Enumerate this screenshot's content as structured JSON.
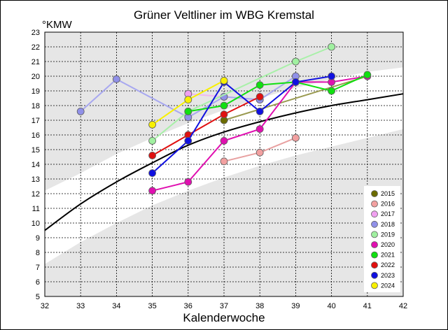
{
  "chart_data": {
    "type": "line",
    "title": "Grüner Veltliner im WBG Kremstal",
    "ylabel": "°KMW",
    "xlabel": "Kalenderwoche",
    "xlim": [
      32,
      42
    ],
    "ylim": [
      5,
      23
    ],
    "x_ticks": [
      32,
      33,
      34,
      35,
      36,
      37,
      38,
      39,
      40,
      41,
      42
    ],
    "y_ticks": [
      5,
      6,
      7,
      8,
      9,
      10,
      11,
      12,
      13,
      14,
      15,
      16,
      17,
      18,
      19,
      20,
      21,
      22,
      23
    ],
    "grid": true,
    "legend_position": "bottom-right",
    "background_bands": {
      "color": "#e6e6e6",
      "upper_band": {
        "x": [
          32,
          33,
          34,
          35,
          36,
          37,
          38,
          39,
          40,
          41,
          42
        ],
        "lower": [
          12.2,
          13.4,
          14.7,
          15.8,
          16.8,
          17.7,
          18.5,
          19.2,
          19.8,
          20.3,
          20.6
        ],
        "upper": [
          23,
          23,
          23,
          23,
          23,
          23,
          23,
          23,
          23,
          23,
          23
        ]
      },
      "lower_band": {
        "x": [
          32,
          33,
          34,
          35,
          36,
          37,
          38,
          39,
          40,
          41,
          42
        ],
        "lower": [
          5,
          5,
          5,
          5,
          5,
          5,
          5,
          5,
          5,
          5,
          5
        ],
        "upper": [
          7.2,
          8.7,
          10.0,
          11.2,
          12.2,
          13.1,
          13.9,
          14.6,
          15.2,
          15.8,
          16.4
        ]
      }
    },
    "reference_curve": {
      "color": "#000000",
      "x": [
        32,
        33,
        34,
        35,
        36,
        37,
        38,
        39,
        40,
        41,
        42
      ],
      "y": [
        9.5,
        11.3,
        12.8,
        14.1,
        15.3,
        16.2,
        16.9,
        17.5,
        18.0,
        18.4,
        18.8
      ]
    },
    "series": [
      {
        "name": "2015",
        "color": "#6b6b00",
        "line_color": "#9a9a50",
        "x": [
          37,
          41
        ],
        "y": [
          17.0,
          20.0
        ]
      },
      {
        "name": "2016",
        "color": "#f2a0a0",
        "line_color": "#e8a0a0",
        "x": [
          37,
          38,
          39
        ],
        "y": [
          14.2,
          14.8,
          15.8
        ]
      },
      {
        "name": "2017",
        "color": "#f0a0f0",
        "line_color": "#f0b8f0",
        "x": [
          36,
          37,
          38
        ],
        "y": [
          18.8,
          18.6,
          18.4
        ]
      },
      {
        "name": "2018",
        "color": "#9090e8",
        "line_color": "#a8a8f0",
        "x": [
          33,
          34,
          36,
          37,
          38,
          39
        ],
        "y": [
          17.6,
          19.8,
          17.2,
          18.6,
          18.4,
          20.0
        ]
      },
      {
        "name": "2019",
        "color": "#a0f0a0",
        "line_color": "#a8f0a8",
        "x": [
          35,
          36,
          39,
          40
        ],
        "y": [
          15.6,
          17.6,
          21.0,
          22.0
        ]
      },
      {
        "name": "2020",
        "color": "#e010b0",
        "line_color": "#e010b0",
        "x": [
          35,
          36,
          37,
          38,
          39,
          40,
          41
        ],
        "y": [
          12.2,
          12.8,
          15.6,
          16.4,
          19.6,
          19.6,
          20.0
        ]
      },
      {
        "name": "2021",
        "color": "#10e010",
        "line_color": "#10e010",
        "x": [
          36,
          37,
          38,
          39,
          40,
          41
        ],
        "y": [
          17.6,
          18.0,
          19.4,
          19.6,
          19.0,
          20.1
        ]
      },
      {
        "name": "2022",
        "color": "#e01010",
        "line_color": "#e01010",
        "x": [
          35,
          36,
          37,
          38
        ],
        "y": [
          14.6,
          16.0,
          17.4,
          18.6
        ]
      },
      {
        "name": "2023",
        "color": "#1010e0",
        "line_color": "#1010e0",
        "x": [
          35,
          36,
          37,
          38,
          39,
          40
        ],
        "y": [
          13.4,
          15.6,
          19.6,
          17.6,
          19.6,
          20.0
        ]
      },
      {
        "name": "2024",
        "color": "#f8f000",
        "line_color": "#f8f000",
        "x": [
          35,
          36,
          37
        ],
        "y": [
          16.7,
          18.4,
          19.7
        ]
      }
    ]
  }
}
